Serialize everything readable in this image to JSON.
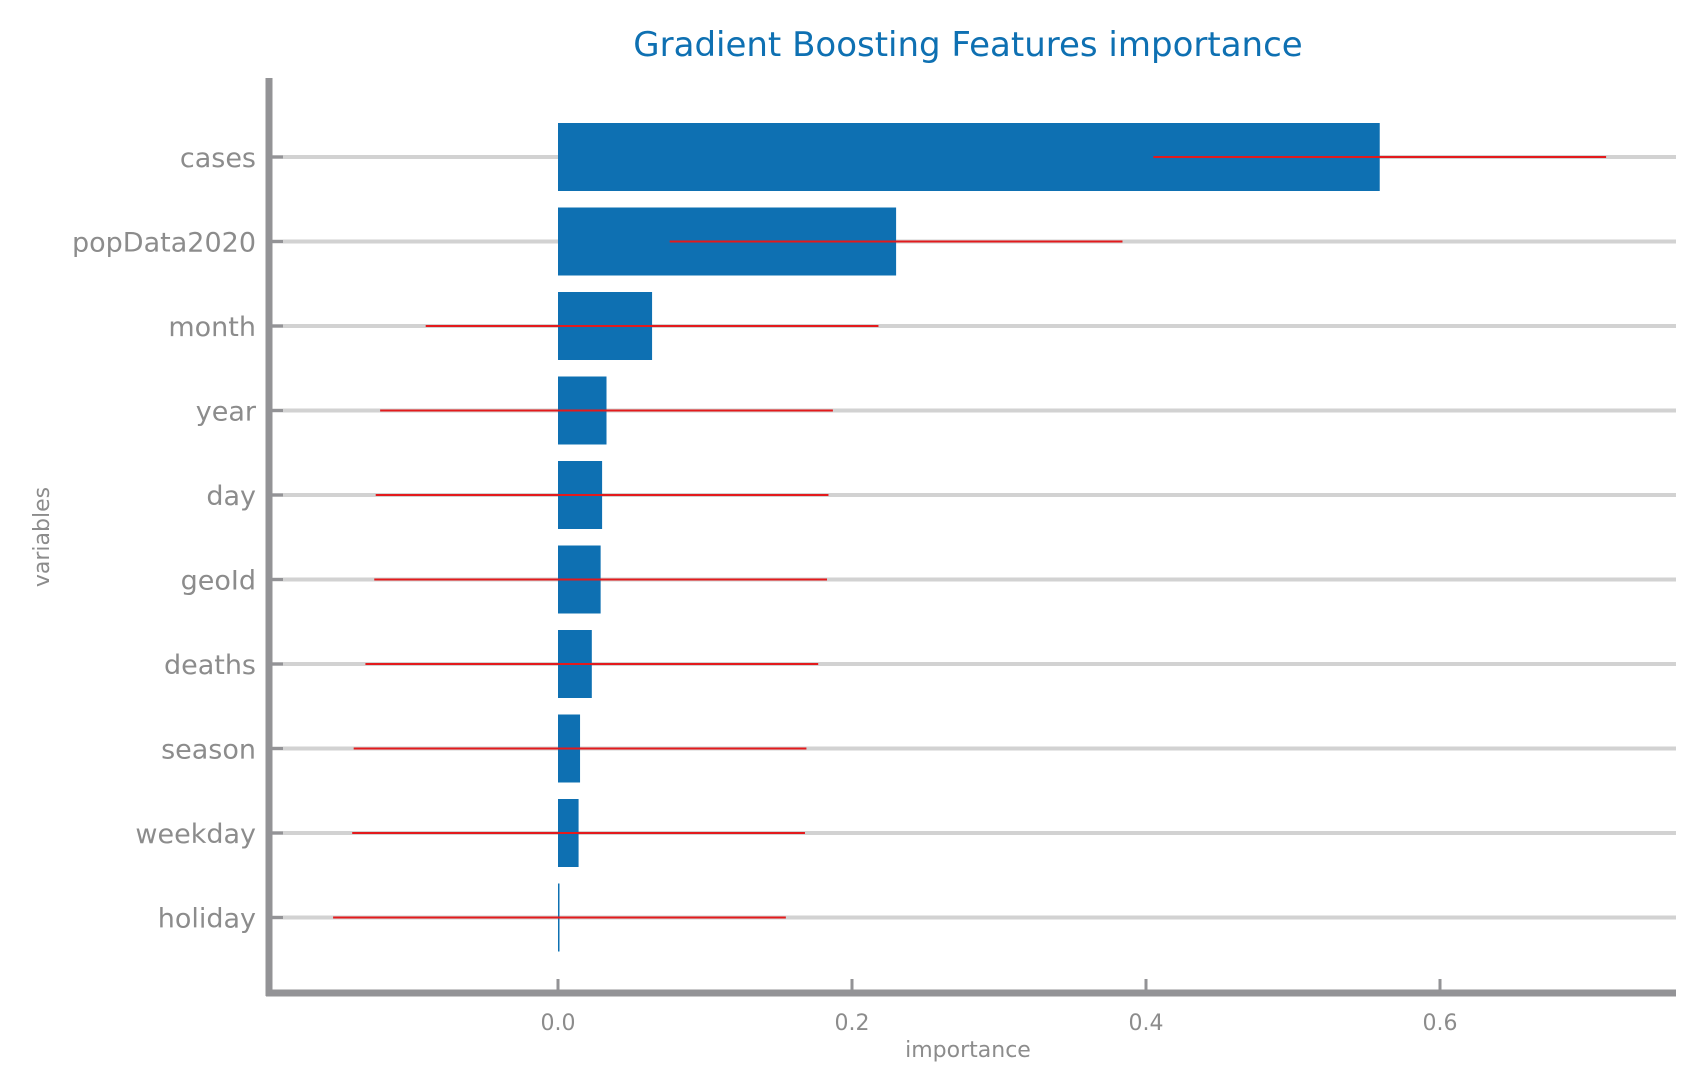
{
  "chart_data": {
    "type": "bar",
    "orientation": "horizontal",
    "title": "Gradient Boosting Features importance",
    "xlabel": "importance",
    "ylabel": "variables",
    "categories": [
      "cases",
      "popData2020",
      "month",
      "year",
      "day",
      "geoId",
      "deaths",
      "season",
      "weekday",
      "holiday"
    ],
    "values": [
      0.559,
      0.23,
      0.064,
      0.033,
      0.03,
      0.029,
      0.023,
      0.015,
      0.014,
      0.001
    ],
    "error": [
      0.154,
      0.154,
      0.154,
      0.154,
      0.154,
      0.154,
      0.154,
      0.154,
      0.154,
      0.154
    ],
    "xlim": [
      -0.197,
      0.76
    ],
    "xticks": [
      0.0,
      0.2,
      0.4,
      0.6
    ],
    "xtick_labels": [
      "0.0",
      "0.2",
      "0.4",
      "0.6"
    ],
    "grid": "horizontal",
    "colors": {
      "bar": "#0e70b2",
      "error": "#e31a1c",
      "grid": "#d2d2d2",
      "axis": "#939396",
      "title": "#0e70b2",
      "text": "#8c8c8c"
    }
  }
}
